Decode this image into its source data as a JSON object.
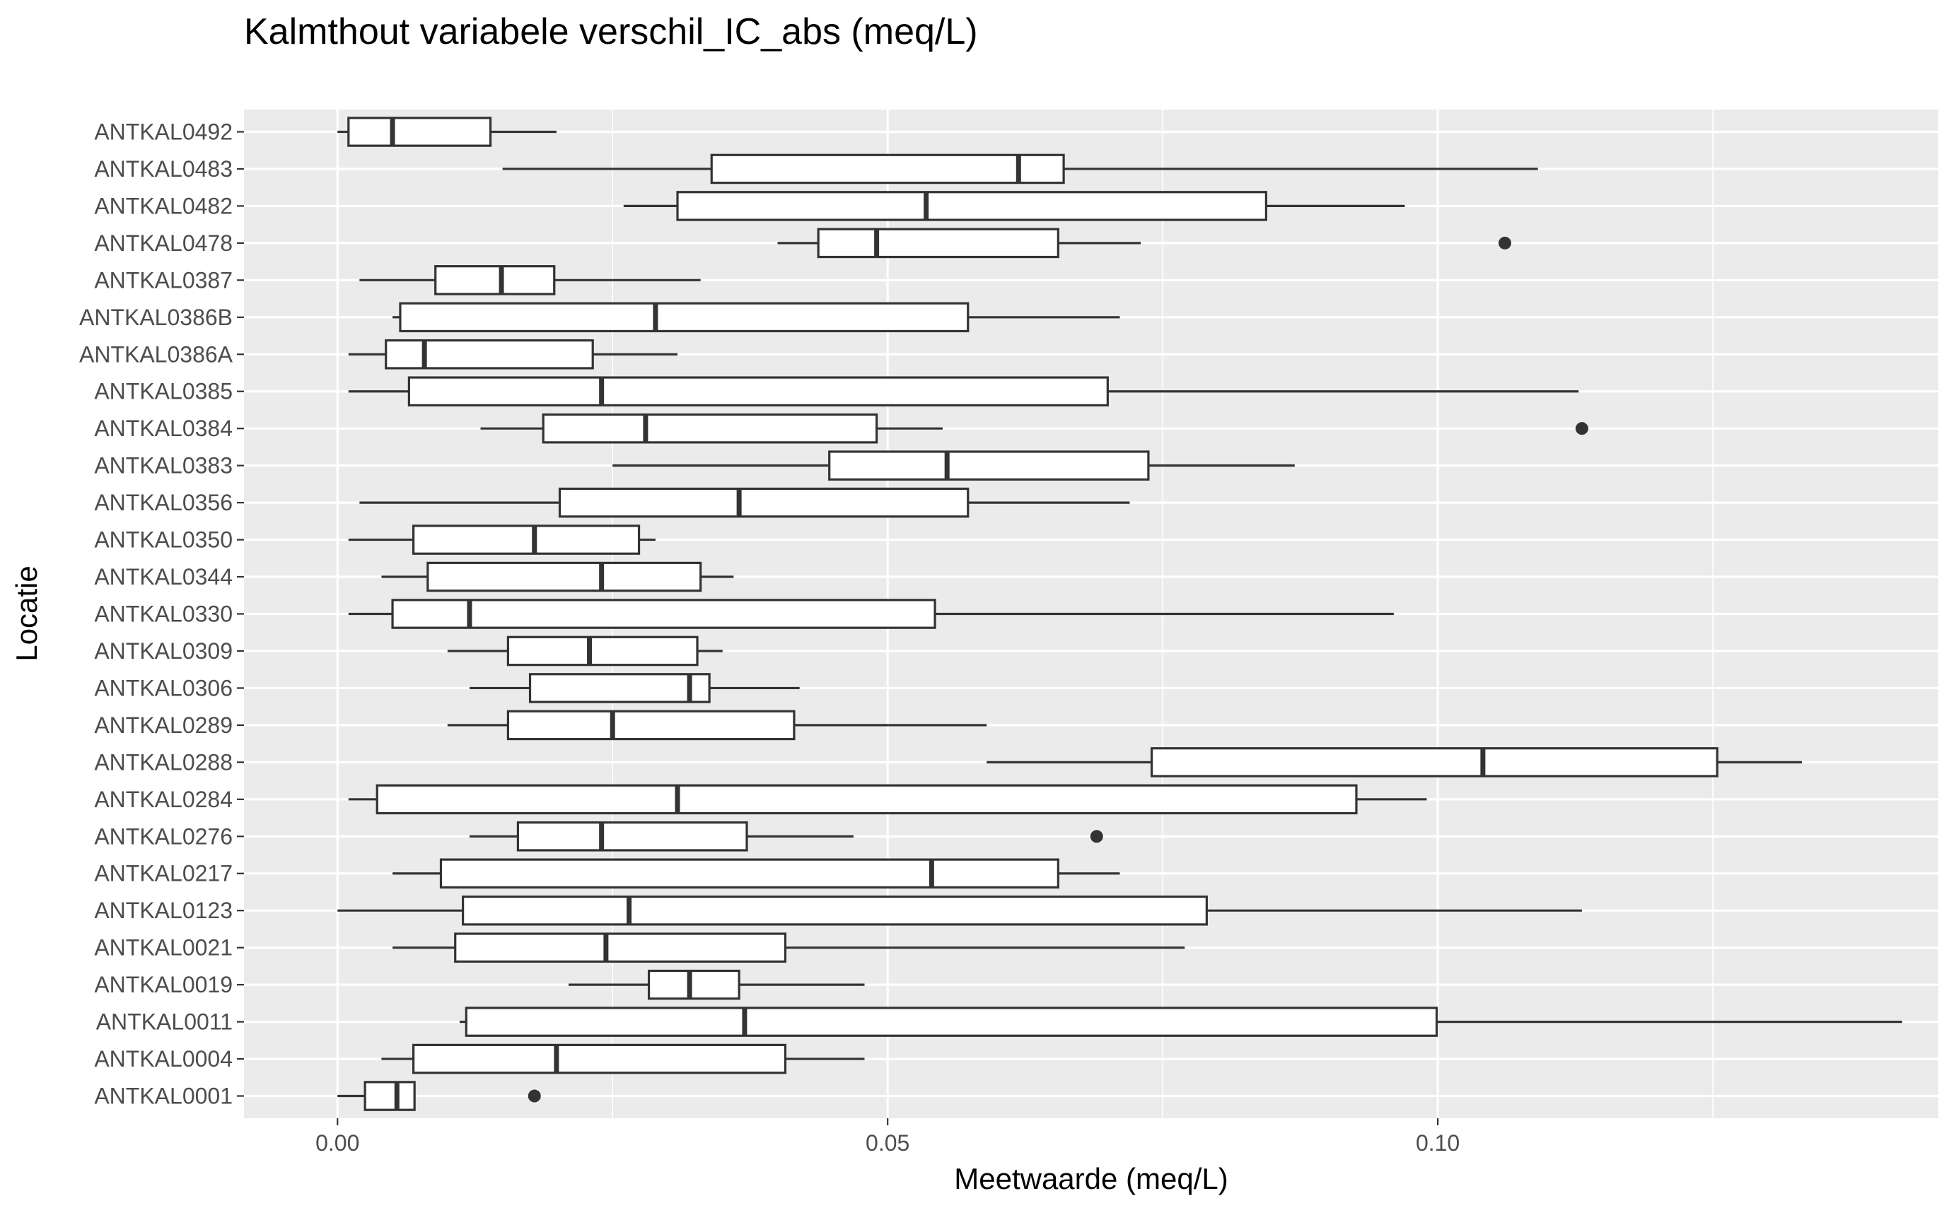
{
  "chart_data": {
    "type": "boxplot",
    "orientation": "horizontal",
    "title": "Kalmthout variabele verschil_IC_abs (meq/L)",
    "xlabel": "Meetwaarde (meq/L)",
    "ylabel": "Locatie",
    "xlim": [
      -0.0085,
      0.1455
    ],
    "x_ticks": [
      0.0,
      0.05,
      0.1
    ],
    "x_tick_labels": [
      "0.00",
      "0.05",
      "0.10"
    ],
    "x_minor_gridlines": [
      -0.025,
      0.025,
      0.075,
      0.125
    ],
    "grid": true,
    "categories": [
      "ANTKAL0001",
      "ANTKAL0004",
      "ANTKAL0011",
      "ANTKAL0019",
      "ANTKAL0021",
      "ANTKAL0123",
      "ANTKAL0217",
      "ANTKAL0276",
      "ANTKAL0284",
      "ANTKAL0288",
      "ANTKAL0289",
      "ANTKAL0306",
      "ANTKAL0309",
      "ANTKAL0330",
      "ANTKAL0344",
      "ANTKAL0350",
      "ANTKAL0356",
      "ANTKAL0383",
      "ANTKAL0384",
      "ANTKAL0385",
      "ANTKAL0386A",
      "ANTKAL0386B",
      "ANTKAL0387",
      "ANTKAL0478",
      "ANTKAL0482",
      "ANTKAL0483",
      "ANTKAL0492"
    ],
    "boxes": [
      {
        "label": "ANTKAL0001",
        "min": 0.0,
        "q1": 0.0025,
        "median": 0.0054,
        "q3": 0.007,
        "max": 0.007,
        "outliers": [
          0.0179
        ]
      },
      {
        "label": "ANTKAL0004",
        "min": 0.004,
        "q1": 0.0069,
        "median": 0.0199,
        "q3": 0.0407,
        "max": 0.0479,
        "outliers": []
      },
      {
        "label": "ANTKAL0011",
        "min": 0.0111,
        "q1": 0.0117,
        "median": 0.037,
        "q3": 0.0999,
        "max": 0.1422,
        "outliers": []
      },
      {
        "label": "ANTKAL0019",
        "min": 0.021,
        "q1": 0.0283,
        "median": 0.032,
        "q3": 0.0365,
        "max": 0.0479,
        "outliers": []
      },
      {
        "label": "ANTKAL0021",
        "min": 0.005,
        "q1": 0.0107,
        "median": 0.0244,
        "q3": 0.0407,
        "max": 0.077,
        "outliers": []
      },
      {
        "label": "ANTKAL0123",
        "min": 0.0,
        "q1": 0.0114,
        "median": 0.0265,
        "q3": 0.079,
        "max": 0.1131,
        "outliers": []
      },
      {
        "label": "ANTKAL0217",
        "min": 0.005,
        "q1": 0.0094,
        "median": 0.054,
        "q3": 0.0655,
        "max": 0.0711,
        "outliers": []
      },
      {
        "label": "ANTKAL0276",
        "min": 0.012,
        "q1": 0.0164,
        "median": 0.024,
        "q3": 0.0372,
        "max": 0.0469,
        "outliers": [
          0.069
        ]
      },
      {
        "label": "ANTKAL0284",
        "min": 0.001,
        "q1": 0.0036,
        "median": 0.0309,
        "q3": 0.0926,
        "max": 0.099,
        "outliers": []
      },
      {
        "label": "ANTKAL0288",
        "min": 0.059,
        "q1": 0.074,
        "median": 0.1041,
        "q3": 0.1254,
        "max": 0.1331,
        "outliers": []
      },
      {
        "label": "ANTKAL0289",
        "min": 0.01,
        "q1": 0.0155,
        "median": 0.025,
        "q3": 0.0415,
        "max": 0.059,
        "outliers": []
      },
      {
        "label": "ANTKAL0306",
        "min": 0.012,
        "q1": 0.0175,
        "median": 0.032,
        "q3": 0.0338,
        "max": 0.042,
        "outliers": []
      },
      {
        "label": "ANTKAL0309",
        "min": 0.01,
        "q1": 0.0155,
        "median": 0.0229,
        "q3": 0.0327,
        "max": 0.035,
        "outliers": []
      },
      {
        "label": "ANTKAL0330",
        "min": 0.001,
        "q1": 0.005,
        "median": 0.012,
        "q3": 0.0543,
        "max": 0.096,
        "outliers": []
      },
      {
        "label": "ANTKAL0344",
        "min": 0.004,
        "q1": 0.0082,
        "median": 0.024,
        "q3": 0.033,
        "max": 0.036,
        "outliers": []
      },
      {
        "label": "ANTKAL0350",
        "min": 0.001,
        "q1": 0.0069,
        "median": 0.0179,
        "q3": 0.0274,
        "max": 0.0289,
        "outliers": []
      },
      {
        "label": "ANTKAL0356",
        "min": 0.002,
        "q1": 0.0202,
        "median": 0.0365,
        "q3": 0.0573,
        "max": 0.072,
        "outliers": []
      },
      {
        "label": "ANTKAL0383",
        "min": 0.025,
        "q1": 0.0447,
        "median": 0.0554,
        "q3": 0.0737,
        "max": 0.087,
        "outliers": []
      },
      {
        "label": "ANTKAL0384",
        "min": 0.013,
        "q1": 0.0187,
        "median": 0.028,
        "q3": 0.049,
        "max": 0.055,
        "outliers": [
          0.1131
        ]
      },
      {
        "label": "ANTKAL0385",
        "min": 0.001,
        "q1": 0.0065,
        "median": 0.024,
        "q3": 0.07,
        "max": 0.1128,
        "outliers": []
      },
      {
        "label": "ANTKAL0386A",
        "min": 0.001,
        "q1": 0.0044,
        "median": 0.0079,
        "q3": 0.0232,
        "max": 0.0309,
        "outliers": []
      },
      {
        "label": "ANTKAL0386B",
        "min": 0.005,
        "q1": 0.0057,
        "median": 0.0289,
        "q3": 0.0573,
        "max": 0.0711,
        "outliers": []
      },
      {
        "label": "ANTKAL0387",
        "min": 0.002,
        "q1": 0.0089,
        "median": 0.0149,
        "q3": 0.0197,
        "max": 0.033,
        "outliers": []
      },
      {
        "label": "ANTKAL0478",
        "min": 0.04,
        "q1": 0.0437,
        "median": 0.049,
        "q3": 0.0655,
        "max": 0.073,
        "outliers": [
          0.1061
        ]
      },
      {
        "label": "ANTKAL0482",
        "min": 0.026,
        "q1": 0.0309,
        "median": 0.0535,
        "q3": 0.0844,
        "max": 0.097,
        "outliers": []
      },
      {
        "label": "ANTKAL0483",
        "min": 0.015,
        "q1": 0.034,
        "median": 0.0619,
        "q3": 0.066,
        "max": 0.1091,
        "outliers": []
      },
      {
        "label": "ANTKAL0492",
        "min": 0.0,
        "q1": 0.001,
        "median": 0.005,
        "q3": 0.0139,
        "max": 0.0199,
        "outliers": []
      }
    ],
    "colors": {
      "panel_background": "#ebebeb",
      "gridline": "#ffffff",
      "box_fill": "#ffffff",
      "box_stroke": "#333333",
      "outlier": "#333333",
      "tick_text": "#4d4d4d"
    }
  }
}
